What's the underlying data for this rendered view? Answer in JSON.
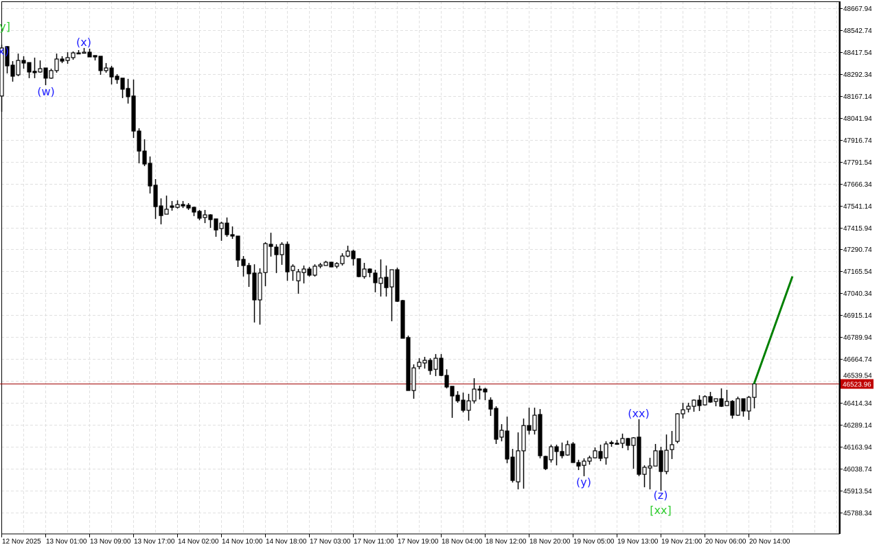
{
  "chart_data": {
    "type": "candlestick",
    "timeframe_note": "",
    "x_tick_labels": [
      "12 Nov 2025",
      "13 Nov 01:00",
      "13 Nov 09:00",
      "13 Nov 17:00",
      "14 Nov 02:00",
      "14 Nov 10:00",
      "14 Nov 18:00",
      "17 Nov 03:00",
      "17 Nov 11:00",
      "17 Nov 19:00",
      "18 Nov 04:00",
      "18 Nov 12:00",
      "18 Nov 20:00",
      "19 Nov 05:00",
      "19 Nov 13:00",
      "19 Nov 21:00",
      "20 Nov 06:00",
      "20 Nov 14:00"
    ],
    "y_tick_labels": [
      "48667.94",
      "48542.74",
      "48417.54",
      "48292.34",
      "48167.14",
      "48041.94",
      "47916.74",
      "47791.54",
      "47666.34",
      "47541.14",
      "47415.94",
      "47290.74",
      "47165.54",
      "47040.34",
      "46915.14",
      "46789.94",
      "46664.74",
      "46539.54",
      "46414.34",
      "46289.14",
      "46163.94",
      "46038.74",
      "45913.54",
      "45788.34"
    ],
    "ylim": [
      45700,
      48700
    ],
    "grid": true,
    "current_price": {
      "value": 46523.96,
      "label": "46523.96",
      "color": "#c00000"
    },
    "ohlc_columns": [
      "open",
      "high",
      "low",
      "close"
    ],
    "candles": [
      [
        48166,
        48459,
        48076,
        48440
      ],
      [
        48448,
        48451,
        48295,
        48338
      ],
      [
        48342,
        48365,
        48248,
        48279
      ],
      [
        48287,
        48408,
        48279,
        48369
      ],
      [
        48369,
        48393,
        48322,
        48354
      ],
      [
        48357,
        48357,
        48268,
        48303
      ],
      [
        48307,
        48385,
        48268,
        48299
      ],
      [
        48303,
        48369,
        48299,
        48322
      ],
      [
        48326,
        48326,
        48228,
        48268
      ],
      [
        48268,
        48322,
        48264,
        48311
      ],
      [
        48311,
        48408,
        48299,
        48377
      ],
      [
        48377,
        48393,
        48354,
        48365
      ],
      [
        48369,
        48416,
        48350,
        48385
      ],
      [
        48385,
        48420,
        48373,
        48412
      ],
      [
        48412,
        48428,
        48408,
        48408
      ],
      [
        48412,
        48440,
        48412,
        48416
      ],
      [
        48416,
        48436,
        48389,
        48389
      ],
      [
        48397,
        48397,
        48369,
        48389
      ],
      [
        48393,
        48393,
        48287,
        48311
      ],
      [
        48311,
        48354,
        48299,
        48326
      ],
      [
        48326,
        48338,
        48232,
        48275
      ],
      [
        48279,
        48291,
        48236,
        48260
      ],
      [
        48268,
        48268,
        48154,
        48205
      ],
      [
        48209,
        48264,
        48123,
        48162
      ],
      [
        48166,
        48260,
        47927,
        47966
      ],
      [
        47966,
        47982,
        47782,
        47852
      ],
      [
        47852,
        47919,
        47766,
        47778
      ],
      [
        47782,
        47821,
        47610,
        47653
      ],
      [
        47657,
        47692,
        47465,
        47535
      ],
      [
        47539,
        47582,
        47434,
        47484
      ],
      [
        47492,
        47598,
        47492,
        47520
      ],
      [
        47539,
        47567,
        47512,
        47531
      ],
      [
        47531,
        47571,
        47524,
        47547
      ],
      [
        47547,
        47567,
        47527,
        47539
      ],
      [
        47543,
        47555,
        47516,
        47527
      ],
      [
        47531,
        47535,
        47481,
        47504
      ],
      [
        47508,
        47516,
        47457,
        47469
      ],
      [
        47473,
        47516,
        47441,
        47488
      ],
      [
        47488,
        47492,
        47414,
        47461
      ],
      [
        47465,
        47465,
        47363,
        47402
      ],
      [
        47410,
        47449,
        47340,
        47441
      ],
      [
        47441,
        47473,
        47363,
        47375
      ],
      [
        47375,
        47422,
        47351,
        47367
      ],
      [
        47367,
        47367,
        47191,
        47230
      ],
      [
        47234,
        47253,
        47136,
        47199
      ],
      [
        47199,
        47214,
        47077,
        47152
      ],
      [
        47156,
        47206,
        46874,
        47003
      ],
      [
        47003,
        47183,
        46862,
        47156
      ],
      [
        47159,
        47332,
        47081,
        47324
      ],
      [
        47320,
        47386,
        47250,
        47308
      ],
      [
        47304,
        47320,
        47156,
        47261
      ],
      [
        47261,
        47332,
        47203,
        47320
      ],
      [
        47320,
        47336,
        47112,
        47163
      ],
      [
        47171,
        47206,
        47112,
        47195
      ],
      [
        47112,
        47179,
        47038,
        47163
      ],
      [
        47159,
        47199,
        47097,
        47179
      ],
      [
        47179,
        47191,
        47136,
        47144
      ],
      [
        47144,
        47206,
        47136,
        47195
      ],
      [
        47195,
        47214,
        47183,
        47203
      ],
      [
        47199,
        47226,
        47199,
        47218
      ],
      [
        47218,
        47218,
        47191,
        47191
      ],
      [
        47195,
        47218,
        47183,
        47210
      ],
      [
        47210,
        47269,
        47199,
        47253
      ],
      [
        47253,
        47312,
        47246,
        47281
      ],
      [
        47281,
        47289,
        47199,
        47238
      ],
      [
        47238,
        47238,
        47132,
        47136
      ],
      [
        47136,
        47214,
        47124,
        47179
      ],
      [
        47179,
        47183,
        47132,
        47159
      ],
      [
        47156,
        47175,
        47046,
        47101
      ],
      [
        47097,
        47234,
        47022,
        47128
      ],
      [
        47132,
        47199,
        47022,
        47073
      ],
      [
        47077,
        47175,
        46881,
        47175
      ],
      [
        47175,
        47187,
        46991,
        46995
      ],
      [
        46999,
        47003,
        46784,
        46784
      ],
      [
        46788,
        46799,
        46486,
        46486
      ],
      [
        46486,
        46635,
        46439,
        46615
      ],
      [
        46623,
        46670,
        46607,
        46647
      ],
      [
        46643,
        46678,
        46611,
        46658
      ],
      [
        46658,
        46670,
        46576,
        46600
      ],
      [
        46607,
        46694,
        46568,
        46670
      ],
      [
        46670,
        46694,
        46568,
        46572
      ],
      [
        46572,
        46607,
        46498,
        46506
      ],
      [
        46510,
        46510,
        46330,
        46455
      ],
      [
        46459,
        46482,
        46416,
        46427
      ],
      [
        46431,
        46474,
        46361,
        46373
      ],
      [
        46373,
        46467,
        46314,
        46427
      ],
      [
        46427,
        46556,
        46412,
        46494
      ],
      [
        46494,
        46514,
        46435,
        46490
      ],
      [
        46494,
        46502,
        46431,
        46478
      ],
      [
        46431,
        46447,
        46341,
        46380
      ],
      [
        46384,
        46396,
        46181,
        46208
      ],
      [
        46220,
        46294,
        46196,
        46259
      ],
      [
        46255,
        46337,
        46071,
        46095
      ],
      [
        46106,
        46153,
        45961,
        45973
      ],
      [
        45965,
        46247,
        45922,
        46142
      ],
      [
        46142,
        46326,
        45926,
        46286
      ],
      [
        46286,
        46388,
        46235,
        46259
      ],
      [
        46259,
        46388,
        46235,
        46345
      ],
      [
        46349,
        46380,
        46099,
        46114
      ],
      [
        46110,
        46114,
        46032,
        46040
      ],
      [
        46091,
        46177,
        46075,
        46165
      ],
      [
        46165,
        46177,
        46059,
        46138
      ],
      [
        46138,
        46189,
        46099,
        46114
      ],
      [
        46118,
        46200,
        46114,
        46177
      ],
      [
        46181,
        46192,
        46075,
        46075
      ],
      [
        46075,
        46091,
        46032,
        46055
      ],
      [
        46059,
        46099,
        45997,
        46083
      ],
      [
        46083,
        46114,
        46063,
        46102
      ],
      [
        46102,
        46161,
        46099,
        46142
      ],
      [
        46138,
        46177,
        46083,
        46099
      ],
      [
        46102,
        46196,
        46063,
        46181
      ],
      [
        46189,
        46200,
        46165,
        46185
      ],
      [
        46185,
        46204,
        46177,
        46181
      ],
      [
        46185,
        46240,
        46157,
        46212
      ],
      [
        46212,
        46216,
        46145,
        46173
      ],
      [
        46173,
        46220,
        46040,
        46216
      ],
      [
        46220,
        46322,
        45997,
        46008
      ],
      [
        46008,
        46059,
        45934,
        46048
      ],
      [
        46044,
        46102,
        45922,
        46055
      ],
      [
        46055,
        46181,
        46055,
        46142
      ],
      [
        46142,
        46165,
        45914,
        46024
      ],
      [
        46024,
        46235,
        46008,
        46145
      ],
      [
        46149,
        46255,
        46095,
        46177
      ],
      [
        46196,
        46357,
        46185,
        46353
      ],
      [
        46353,
        46416,
        46326,
        46376
      ],
      [
        46380,
        46416,
        46361,
        46396
      ],
      [
        46396,
        46435,
        46365,
        46431
      ],
      [
        46431,
        46459,
        46369,
        46400
      ],
      [
        46404,
        46459,
        46400,
        46451
      ],
      [
        46451,
        46478,
        46416,
        46420
      ],
      [
        46424,
        46439,
        46396,
        46439
      ],
      [
        46439,
        46498,
        46392,
        46396
      ],
      [
        46400,
        46490,
        46400,
        46424
      ],
      [
        46424,
        46431,
        46326,
        46345
      ],
      [
        46345,
        46451,
        46341,
        46439
      ],
      [
        46439,
        46439,
        46337,
        46369
      ],
      [
        46369,
        46455,
        46318,
        46447
      ],
      [
        46447,
        46525,
        46384,
        46523.96
      ]
    ],
    "forecast_line": {
      "start_price": 46523.96,
      "end_price": 47137,
      "color": "#008000"
    },
    "annotations": {
      "green_y": "[y]",
      "blue_x_left": "(x)",
      "w": "(w)",
      "x": "(x)",
      "y": "(y)",
      "xx": "(xx)",
      "z": "(z)",
      "green_xx": "[xx]"
    },
    "colors": {
      "wave_blue": "#1e1eff",
      "wave_green": "#2ecc2e",
      "bull_fill": "#ffffff",
      "bear_fill": "#000000"
    }
  }
}
